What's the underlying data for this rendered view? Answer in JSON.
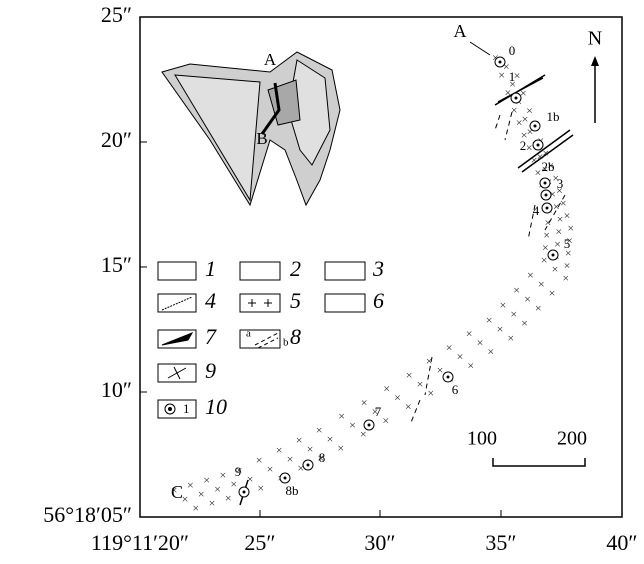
{
  "y_axis": {
    "tick_labels": [
      "25″",
      "20″",
      "15″",
      "10″",
      "56°18′05″"
    ]
  },
  "x_axis": {
    "tick_labels": [
      "119°11′20″",
      "25″",
      "30″",
      "35″",
      "40″"
    ]
  },
  "map": {
    "section_labels": [
      "A",
      "C"
    ],
    "north": "N",
    "point_labels": [
      "0",
      "1",
      "1b",
      "2",
      "2b",
      "3",
      "4",
      "5",
      "6",
      "7",
      "8",
      "8b",
      "9"
    ]
  },
  "inset": {
    "labels": [
      "A",
      "B"
    ]
  },
  "legend": {
    "items": [
      "1",
      "2",
      "3",
      "4",
      "5",
      "6",
      "7",
      "8",
      "9",
      "10"
    ],
    "sample_8": [
      "a",
      "b"
    ],
    "sample_10": "1"
  },
  "scale_bar": {
    "labels": [
      "100",
      "200"
    ]
  }
}
